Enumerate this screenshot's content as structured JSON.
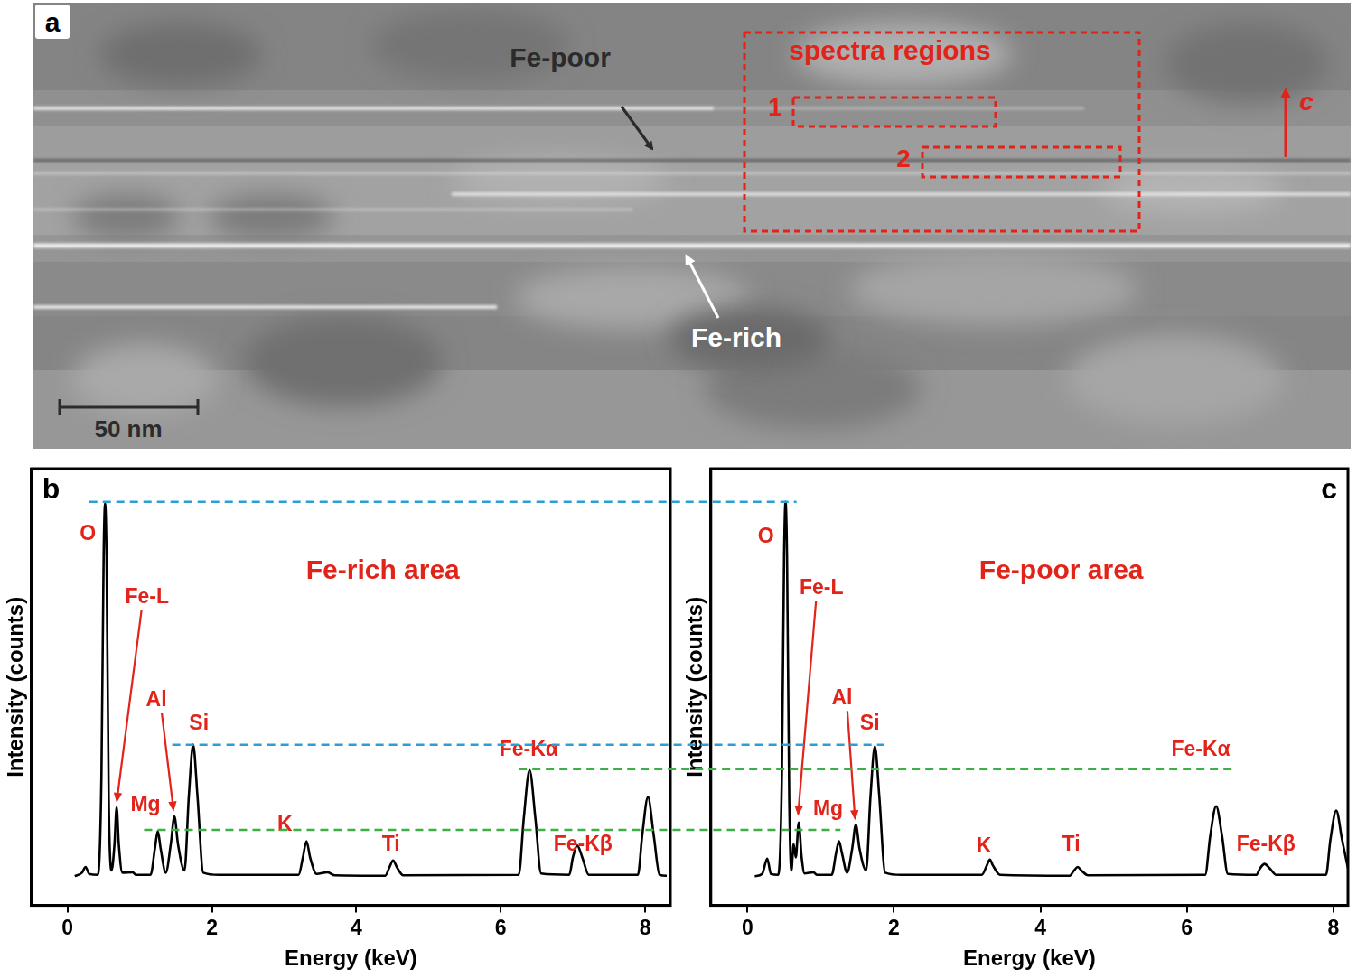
{
  "image_panel": {
    "panel_label": "a",
    "fe_poor_label": "Fe-poor",
    "fe_rich_label": "Fe-rich",
    "regions_title": "spectra regions",
    "regions": [
      "1",
      "2"
    ],
    "axis_label": "c",
    "scale_bar": "50 nm"
  },
  "chart_data": [
    {
      "type": "line",
      "panel_label": "b",
      "title": "Fe-rich area",
      "x_label": "Energy (keV)",
      "y_label": "Intensity (counts)",
      "x": [
        0.1,
        0.2,
        0.25,
        0.3,
        0.42,
        0.47,
        0.5,
        0.52,
        0.54,
        0.57,
        0.61,
        0.65,
        0.68,
        0.71,
        0.76,
        0.9,
        0.95,
        1.15,
        1.21,
        1.25,
        1.29,
        1.36,
        1.43,
        1.48,
        1.53,
        1.62,
        1.68,
        1.74,
        1.8,
        1.88,
        2.1,
        3.2,
        3.26,
        3.31,
        3.36,
        3.45,
        3.6,
        3.7,
        4.4,
        4.46,
        4.51,
        4.56,
        4.65,
        6.25,
        6.32,
        6.4,
        6.48,
        6.56,
        6.95,
        7.0,
        7.06,
        7.13,
        7.22,
        7.9,
        7.96,
        8.04,
        8.12,
        8.2,
        8.3
      ],
      "values": [
        6.7,
        7.5,
        8.8,
        7.2,
        7.0,
        30,
        80,
        92,
        80,
        25,
        8,
        14,
        22.5,
        14,
        7.5,
        7.6,
        7.0,
        7.0,
        13,
        17,
        13,
        7.5,
        14,
        20.4,
        14,
        8,
        25,
        36.8,
        25,
        7.5,
        7.0,
        7.0,
        11,
        14.7,
        11,
        7.2,
        7.6,
        6.9,
        6.8,
        8.8,
        10.3,
        8.8,
        6.9,
        7.0,
        20,
        31,
        20,
        7.3,
        7.0,
        11,
        13.7,
        11,
        7.0,
        7.0,
        16,
        24.8,
        16,
        7.0,
        6.8
      ],
      "color": "#000000",
      "xlim": [
        -0.5,
        8.35
      ],
      "xticks": [
        0,
        2,
        4,
        6,
        8
      ],
      "ylim": [
        0,
        100
      ],
      "tick_labels": "x",
      "grid": false,
      "annotations": [
        {
          "text": "O",
          "x": 0.28,
          "y": 85
        },
        {
          "text": "Fe-L",
          "x": 1.1,
          "y": 70.5,
          "arrow_to": [
            0.68,
            23.5
          ]
        },
        {
          "text": "Al",
          "x": 1.23,
          "y": 47,
          "arrow_to": [
            1.47,
            21.5
          ]
        },
        {
          "text": "Mg",
          "x": 1.08,
          "y": 23
        },
        {
          "text": "Si",
          "x": 1.82,
          "y": 41.5
        },
        {
          "text": "K",
          "x": 3.01,
          "y": 18.3
        },
        {
          "text": "Ti",
          "x": 4.48,
          "y": 13.9
        },
        {
          "text": "Fe-Kα",
          "x": 6.39,
          "y": 35.5
        },
        {
          "text": "Fe-Kβ",
          "x": 7.14,
          "y": 13.9
        }
      ]
    },
    {
      "type": "line",
      "panel_label": "c",
      "title": "Fe-poor area",
      "x_label": "Energy (keV)",
      "y_label": "Intensity (counts)",
      "x": [
        0.1,
        0.2,
        0.27,
        0.32,
        0.42,
        0.47,
        0.5,
        0.52,
        0.54,
        0.57,
        0.6,
        0.63,
        0.66,
        0.7,
        0.74,
        0.78,
        0.9,
        0.95,
        1.15,
        1.21,
        1.25,
        1.29,
        1.36,
        1.43,
        1.48,
        1.53,
        1.62,
        1.68,
        1.74,
        1.8,
        1.88,
        2.1,
        3.2,
        3.27,
        3.31,
        3.35,
        3.45,
        4.4,
        4.46,
        4.51,
        4.56,
        4.65,
        6.25,
        6.32,
        6.4,
        6.48,
        6.56,
        6.95,
        7.0,
        7.06,
        7.13,
        7.22,
        7.9,
        7.96,
        8.04,
        8.12,
        8.2
      ],
      "values": [
        6.7,
        7.2,
        10.7,
        7.2,
        7.0,
        30,
        80,
        92.4,
        80,
        25,
        8,
        14,
        11,
        19,
        11,
        7.3,
        7.6,
        7.0,
        7.0,
        12,
        14.7,
        12,
        7.5,
        13,
        18.5,
        13,
        8,
        25,
        36.4,
        25,
        7.5,
        7.0,
        7.0,
        9.2,
        10.5,
        9.2,
        7.0,
        6.8,
        8.0,
        8.8,
        8.0,
        6.9,
        7.0,
        16,
        22.7,
        16,
        7.2,
        7.0,
        8.5,
        9.5,
        8.5,
        7.0,
        7.0,
        15,
        21.7,
        15,
        8.5
      ],
      "color": "#000000",
      "xlim": [
        -0.5,
        8.2
      ],
      "xticks": [
        0,
        2,
        4,
        6,
        8
      ],
      "ylim": [
        0,
        100
      ],
      "tick_labels": "x",
      "grid": false,
      "annotations": [
        {
          "text": "O",
          "x": 0.25,
          "y": 84.4
        },
        {
          "text": "Fe-L",
          "x": 1.01,
          "y": 72.6,
          "arrow_to": [
            0.69,
            20.5
          ]
        },
        {
          "text": "Al",
          "x": 1.29,
          "y": 47.4,
          "arrow_to": [
            1.47,
            19.5
          ]
        },
        {
          "text": "Mg",
          "x": 1.1,
          "y": 22
        },
        {
          "text": "Si",
          "x": 1.67,
          "y": 41.5
        },
        {
          "text": "K",
          "x": 3.23,
          "y": 13.4
        },
        {
          "text": "Ti",
          "x": 4.42,
          "y": 13.9
        },
        {
          "text": "Fe-Kα",
          "x": 6.19,
          "y": 35.5
        },
        {
          "text": "Fe-Kβ",
          "x": 7.08,
          "y": 13.9
        }
      ]
    }
  ],
  "guide_lines": [
    {
      "color": "#2a9fd6",
      "line_style": "dashed",
      "value": 92.4,
      "from": 0.3,
      "to": 0.67
    },
    {
      "color": "#2a9fd6",
      "line_style": "dashed",
      "value": 36.8,
      "from": 1.45,
      "to": 1.86
    },
    {
      "color": "#3cb043",
      "line_style": "dashed",
      "value": 31.2,
      "from": 6.25,
      "to": 6.67
    },
    {
      "color": "#3cb043",
      "line_style": "dashed",
      "value": 17.3,
      "from": 1.06,
      "to": 1.27
    }
  ]
}
